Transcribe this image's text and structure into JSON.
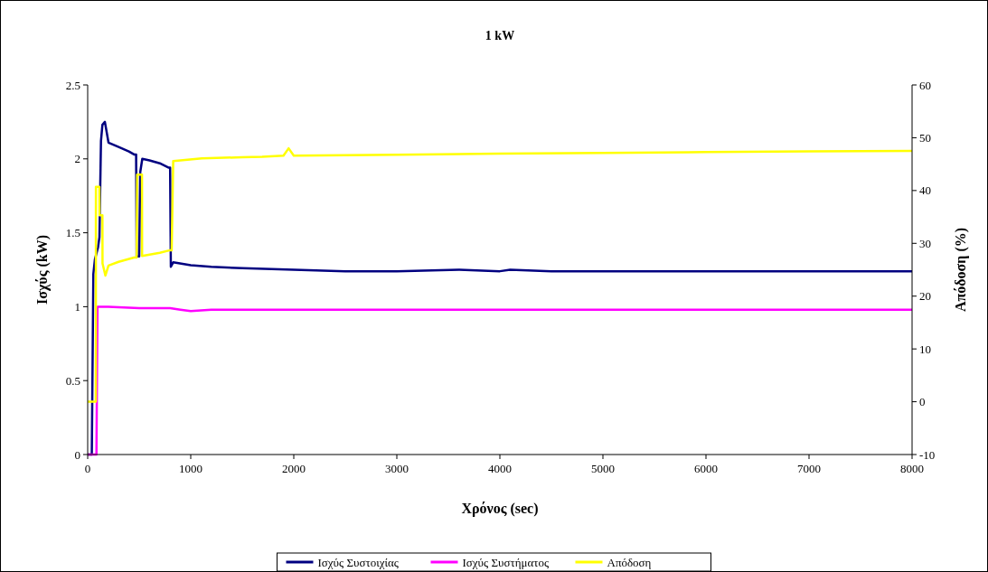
{
  "chart_data": {
    "type": "line",
    "title": "1 kW",
    "xlabel": "Χρόνος (sec)",
    "ylabel": "Ισχύς (kW)",
    "y2label": "Απόδοση (%)",
    "xlim": [
      0,
      8000
    ],
    "xticks": [
      0,
      1000,
      2000,
      3000,
      4000,
      5000,
      6000,
      7000,
      8000
    ],
    "ylim": [
      0,
      2.5
    ],
    "yticks": [
      0,
      0.5,
      1,
      1.5,
      2,
      2.5
    ],
    "y2lim": [
      -10,
      60
    ],
    "y2ticks": [
      -10,
      0,
      10,
      20,
      30,
      40,
      50,
      60
    ],
    "grid": false,
    "legend": "bottom",
    "line_style": "solid",
    "series": [
      {
        "name": "Ισχύς Συστοιχίας",
        "color": "#000080",
        "x": [
          0,
          40,
          55,
          70,
          100,
          114,
          129,
          143,
          167,
          202,
          300,
          400,
          450,
          470,
          475,
          500,
          510,
          530,
          600,
          700,
          787,
          800,
          807,
          830,
          1000,
          1200,
          1500,
          2000,
          2500,
          3000,
          3600,
          4000,
          4100,
          4500,
          5000,
          6000,
          7000,
          8000
        ],
        "values": [
          0,
          0,
          1.22,
          1.32,
          1.4,
          1.47,
          2.12,
          2.23,
          2.25,
          2.11,
          2.08,
          2.05,
          2.03,
          2.03,
          1.34,
          1.34,
          1.91,
          2.0,
          1.99,
          1.97,
          1.94,
          1.94,
          1.27,
          1.3,
          1.28,
          1.27,
          1.26,
          1.25,
          1.24,
          1.24,
          1.25,
          1.24,
          1.25,
          1.24,
          1.24,
          1.24,
          1.24,
          1.24
        ]
      },
      {
        "name": "Ισχύς Συστήματος",
        "color": "#ff00ff",
        "x": [
          0,
          85,
          95,
          200,
          500,
          800,
          900,
          1000,
          1200,
          1500,
          2000,
          3000,
          4000,
          5000,
          6000,
          7000,
          8000
        ],
        "values": [
          0,
          0,
          1.0,
          1.0,
          0.99,
          0.99,
          0.98,
          0.97,
          0.98,
          0.98,
          0.98,
          0.98,
          0.98,
          0.98,
          0.98,
          0.98,
          0.98
        ]
      },
      {
        "name": "Απόδοση",
        "color": "#ffff00",
        "axis": "y2",
        "x": [
          0,
          79,
          80,
          114,
          115,
          143,
          144,
          172,
          202,
          300,
          450,
          475,
          480,
          527,
          528,
          700,
          800,
          815,
          830,
          1108,
          1500,
          1693,
          1900,
          1950,
          2000,
          2500,
          3000,
          4000,
          5000,
          6000,
          7000,
          8000
        ],
        "values": [
          0,
          0,
          40.7,
          40.7,
          35.3,
          35.3,
          26.2,
          23.9,
          25.8,
          26.5,
          27.3,
          27.3,
          43,
          43,
          27.6,
          28.2,
          28.7,
          28.7,
          45.6,
          46.1,
          46.3,
          46.4,
          46.6,
          48,
          46.6,
          46.7,
          46.8,
          47,
          47.1,
          47.3,
          47.4,
          47.5
        ]
      }
    ]
  }
}
